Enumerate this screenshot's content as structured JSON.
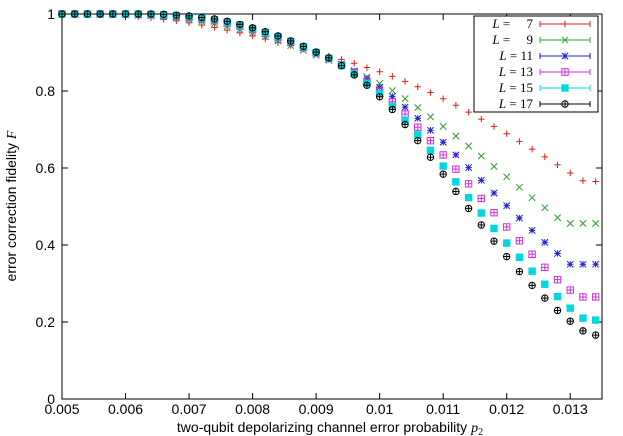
{
  "chart_data": {
    "type": "scatter",
    "title": "",
    "xlabel": "two-qubit depolarizing channel error probability",
    "xlabel_symbol": "p",
    "xlabel_subscript": "2",
    "ylabel": "error correction fidelity",
    "ylabel_symbol": "F",
    "xlim": [
      0.005,
      0.0135
    ],
    "ylim": [
      0,
      1
    ],
    "xticks": [
      "0.005",
      "0.006",
      "0.007",
      "0.008",
      "0.009",
      "0.01",
      "0.011",
      "0.012",
      "0.013"
    ],
    "xtick_values": [
      0.005,
      0.006,
      0.007,
      0.008,
      0.009,
      0.01,
      0.011,
      0.012,
      0.013
    ],
    "yticks": [
      "0",
      "0.2",
      "0.4",
      "0.6",
      "0.8",
      "1"
    ],
    "ytick_values": [
      0,
      0.2,
      0.4,
      0.6,
      0.8,
      1.0
    ],
    "grid": false,
    "legend_position": "top-right",
    "legend_var": "L",
    "x_step": 0.0002,
    "series": [
      {
        "name": "7",
        "color": "#e41a1c",
        "marker": "plus",
        "values": [
          1.0,
          1.0,
          1.0,
          1.0,
          0.998,
          0.995,
          0.993,
          0.99,
          0.986,
          0.982,
          0.977,
          0.971,
          0.965,
          0.958,
          0.951,
          0.943,
          0.935,
          0.926,
          0.918,
          0.909,
          0.9,
          0.891,
          0.882,
          0.872,
          0.861,
          0.85,
          0.838,
          0.825,
          0.811,
          0.796,
          0.78,
          0.763,
          0.745,
          0.727,
          0.708,
          0.689,
          0.669,
          0.649,
          0.629,
          0.608,
          0.587,
          0.567,
          0.565
        ]
      },
      {
        "name": "9",
        "color": "#2ca02c",
        "marker": "cross",
        "values": [
          1.0,
          1.0,
          1.0,
          1.0,
          0.999,
          0.998,
          0.997,
          0.995,
          0.993,
          0.99,
          0.986,
          0.981,
          0.975,
          0.968,
          0.96,
          0.951,
          0.941,
          0.93,
          0.918,
          0.906,
          0.893,
          0.88,
          0.866,
          0.852,
          0.837,
          0.82,
          0.801,
          0.78,
          0.757,
          0.733,
          0.708,
          0.683,
          0.657,
          0.631,
          0.604,
          0.577,
          0.55,
          0.523,
          0.497,
          0.471,
          0.456,
          0.456,
          0.456
        ]
      },
      {
        "name": "11",
        "color": "#1f1fd0",
        "marker": "asterisk",
        "values": [
          1.0,
          1.0,
          1.0,
          1.0,
          1.0,
          0.999,
          0.998,
          0.997,
          0.995,
          0.993,
          0.99,
          0.986,
          0.981,
          0.975,
          0.967,
          0.958,
          0.948,
          0.937,
          0.925,
          0.912,
          0.899,
          0.885,
          0.87,
          0.852,
          0.832,
          0.81,
          0.786,
          0.758,
          0.729,
          0.698,
          0.667,
          0.634,
          0.601,
          0.568,
          0.535,
          0.502,
          0.47,
          0.438,
          0.407,
          0.378,
          0.35,
          0.35,
          0.35
        ]
      },
      {
        "name": "13",
        "color": "#d030d0",
        "marker": "boxplus",
        "values": [
          1.0,
          1.0,
          1.0,
          1.0,
          1.0,
          1.0,
          0.999,
          0.998,
          0.997,
          0.995,
          0.992,
          0.988,
          0.983,
          0.977,
          0.969,
          0.96,
          0.95,
          0.939,
          0.927,
          0.913,
          0.899,
          0.884,
          0.868,
          0.848,
          0.825,
          0.8,
          0.772,
          0.74,
          0.706,
          0.671,
          0.634,
          0.597,
          0.559,
          0.521,
          0.484,
          0.447,
          0.411,
          0.376,
          0.342,
          0.31,
          0.283,
          0.265,
          0.265
        ]
      },
      {
        "name": "15",
        "color": "#00d8e0",
        "marker": "square",
        "values": [
          1.0,
          1.0,
          1.0,
          1.0,
          1.0,
          1.0,
          1.0,
          0.999,
          0.998,
          0.996,
          0.993,
          0.99,
          0.985,
          0.979,
          0.971,
          0.962,
          0.952,
          0.941,
          0.929,
          0.915,
          0.9,
          0.885,
          0.866,
          0.845,
          0.82,
          0.793,
          0.76,
          0.724,
          0.686,
          0.646,
          0.605,
          0.564,
          0.523,
          0.483,
          0.443,
          0.405,
          0.368,
          0.332,
          0.298,
          0.266,
          0.236,
          0.21,
          0.205
        ]
      },
      {
        "name": "17",
        "color": "#000000",
        "marker": "circleplus",
        "values": [
          1.0,
          1.0,
          1.0,
          1.0,
          1.0,
          1.0,
          1.0,
          1.0,
          0.999,
          0.997,
          0.995,
          0.991,
          0.987,
          0.981,
          0.973,
          0.964,
          0.954,
          0.943,
          0.93,
          0.916,
          0.901,
          0.886,
          0.866,
          0.842,
          0.815,
          0.785,
          0.752,
          0.713,
          0.671,
          0.628,
          0.584,
          0.539,
          0.495,
          0.452,
          0.41,
          0.37,
          0.331,
          0.295,
          0.262,
          0.23,
          0.202,
          0.177,
          0.166
        ]
      }
    ]
  }
}
